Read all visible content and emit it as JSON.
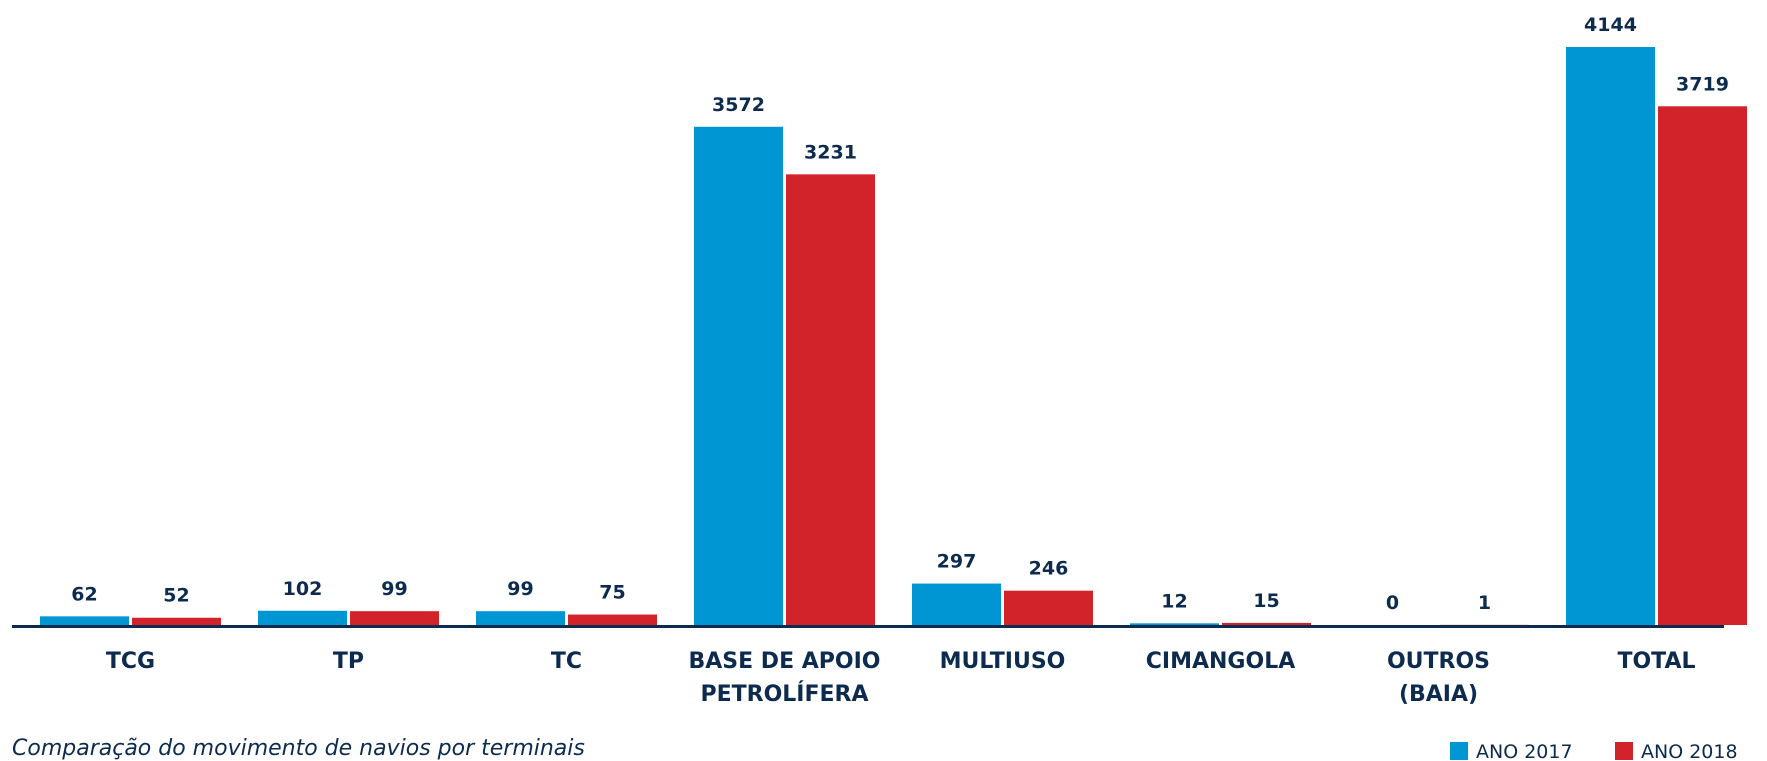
{
  "chart_data": {
    "type": "bar",
    "categories": [
      "TCG",
      "TP",
      "TC",
      "BASE DE APOIO\nPETROLÍFERA",
      "MULTIUSO",
      "CIMANGOLA",
      "OUTROS\n(BAIA)",
      "TOTAL"
    ],
    "series": [
      {
        "name": "ANO 2017",
        "color": "#0095d3",
        "values": [
          62,
          102,
          99,
          3572,
          297,
          12,
          0,
          4144
        ]
      },
      {
        "name": "ANO 2018",
        "color": "#d2232a",
        "values": [
          52,
          99,
          75,
          3231,
          246,
          15,
          1,
          3719
        ]
      }
    ],
    "caption": "Comparação do movimento de navios por terminais"
  }
}
